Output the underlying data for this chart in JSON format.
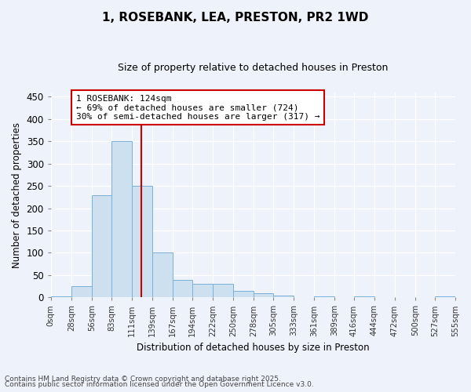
{
  "title": "1, ROSEBANK, LEA, PRESTON, PR2 1WD",
  "subtitle": "Size of property relative to detached houses in Preston",
  "xlabel": "Distribution of detached houses by size in Preston",
  "ylabel": "Number of detached properties",
  "bar_color": "#cce0f0",
  "bar_edge_color": "#7ab0d8",
  "background_color": "#eef2fa",
  "grid_color": "#ffffff",
  "bin_edges": [
    0,
    28,
    56,
    83,
    111,
    139,
    167,
    194,
    222,
    250,
    278,
    305,
    333,
    361,
    389,
    416,
    444,
    472,
    500,
    527,
    555
  ],
  "bin_labels": [
    "0sqm",
    "28sqm",
    "56sqm",
    "83sqm",
    "111sqm",
    "139sqm",
    "167sqm",
    "194sqm",
    "222sqm",
    "250sqm",
    "278sqm",
    "305sqm",
    "333sqm",
    "361sqm",
    "389sqm",
    "416sqm",
    "444sqm",
    "472sqm",
    "500sqm",
    "527sqm",
    "555sqm"
  ],
  "counts": [
    3,
    25,
    230,
    350,
    250,
    100,
    40,
    30,
    30,
    14,
    10,
    4,
    0,
    3,
    0,
    3,
    0,
    0,
    0,
    2
  ],
  "property_size": 124,
  "vline_x": 124,
  "vline_color": "#cc0000",
  "annotation_text": "1 ROSEBANK: 124sqm\n← 69% of detached houses are smaller (724)\n30% of semi-detached houses are larger (317) →",
  "annotation_box_color": "#ffffff",
  "annotation_box_edge": "#cc0000",
  "ylim": [
    0,
    460
  ],
  "yticks": [
    0,
    50,
    100,
    150,
    200,
    250,
    300,
    350,
    400,
    450
  ],
  "footer_line1": "Contains HM Land Registry data © Crown copyright and database right 2025.",
  "footer_line2": "Contains public sector information licensed under the Open Government Licence v3.0."
}
